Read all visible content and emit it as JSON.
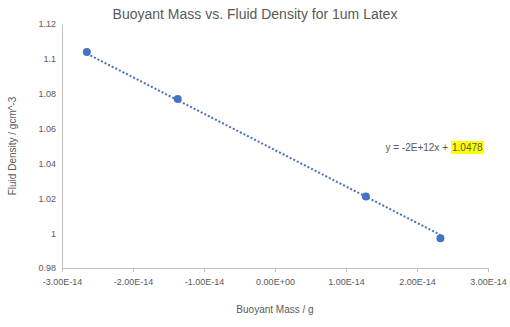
{
  "chart_data": {
    "type": "scatter",
    "title": "Buoyant Mass vs. Fluid Density for 1um Latex",
    "x_label": "Buoyant Mass / g",
    "y_label": "Fluid Density / gcm^-3",
    "series": [
      {
        "type": "scatter",
        "color": "#4472c4",
        "marker": "circle",
        "x": [
          -2.65e-14,
          -1.37e-14,
          1.28e-14,
          2.33e-14
        ],
        "values": [
          1.104,
          1.077,
          1.021,
          0.997
        ]
      },
      {
        "type": "line",
        "color": "#4472c4",
        "line_style": "dotted",
        "x": [
          -2.65e-14,
          2.33e-14
        ],
        "values": [
          1.103,
          0.999
        ]
      }
    ],
    "annotations": [
      "y = -2E+12x +",
      "1.0478"
    ],
    "xlim": [
      -3e-14,
      3e-14
    ],
    "xticks": [
      {
        "value": -3e-14,
        "label": "-3.00E-14"
      },
      {
        "value": -2e-14,
        "label": "-2.00E-14"
      },
      {
        "value": -1e-14,
        "label": "-1.00E-14"
      },
      {
        "value": 0,
        "label": "0.00E+00"
      },
      {
        "value": 1e-14,
        "label": "1.00E-14"
      },
      {
        "value": 2e-14,
        "label": "2.00E-14"
      },
      {
        "value": 3e-14,
        "label": "3.00E-14"
      }
    ],
    "ylim": [
      0.98,
      1.12
    ],
    "yticks": [
      0.98,
      1,
      1.02,
      1.04,
      1.06,
      1.08,
      1.1,
      1.12
    ],
    "grid": false
  }
}
